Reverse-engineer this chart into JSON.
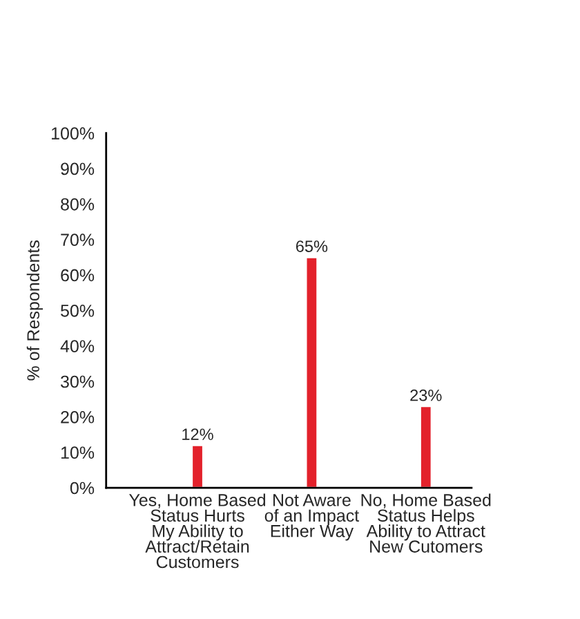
{
  "chart_data": {
    "type": "bar",
    "ylabel": "% of Respondents",
    "categories": [
      "Yes, Home Based\nStatus Hurts\nMy Ability to\nAttract/Retain\nCustomers",
      "Not Aware\nof an Impact\nEither Way",
      "No, Home Based\nStatus Helps\nAbility to Attract\nNew Cutomers"
    ],
    "values": [
      12,
      65,
      23
    ],
    "color": "#e3212b",
    "value_labels": [
      "12%",
      "65%",
      "23%"
    ],
    "ylim": [
      0,
      100
    ],
    "yticks": [
      {
        "value": 0,
        "label": "0%"
      },
      {
        "value": 10,
        "label": "10%"
      },
      {
        "value": 20,
        "label": "20%"
      },
      {
        "value": 30,
        "label": "30%"
      },
      {
        "value": 40,
        "label": "40%"
      },
      {
        "value": 50,
        "label": "50%"
      },
      {
        "value": 60,
        "label": "60%"
      },
      {
        "value": 70,
        "label": "70%"
      },
      {
        "value": 80,
        "label": "80%"
      },
      {
        "value": 90,
        "label": "90%"
      },
      {
        "value": 100,
        "label": "100%"
      }
    ],
    "grid": false,
    "legend": false
  }
}
